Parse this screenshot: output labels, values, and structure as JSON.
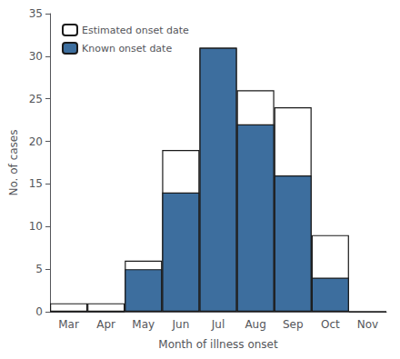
{
  "chart_data": {
    "type": "bar",
    "xlabel": "Month of illness onset",
    "ylabel": "No. of cases",
    "categories": [
      "Mar",
      "Apr",
      "May",
      "Jun",
      "Jul",
      "Aug",
      "Sep",
      "Oct",
      "Nov"
    ],
    "series": [
      {
        "name": "Estimated onset date",
        "color": "#ffffff",
        "values": [
          1,
          1,
          6,
          19,
          31,
          26,
          24,
          9,
          0
        ]
      },
      {
        "name": "Known onset date",
        "color": "#3d6e9e",
        "values": [
          0,
          0,
          5,
          14,
          31,
          22,
          16,
          4,
          0
        ]
      }
    ],
    "ylim": [
      0,
      35
    ],
    "yticks": [
      0,
      5,
      10,
      15,
      20,
      25,
      30,
      35
    ],
    "grid": false,
    "legend": "upper left"
  }
}
